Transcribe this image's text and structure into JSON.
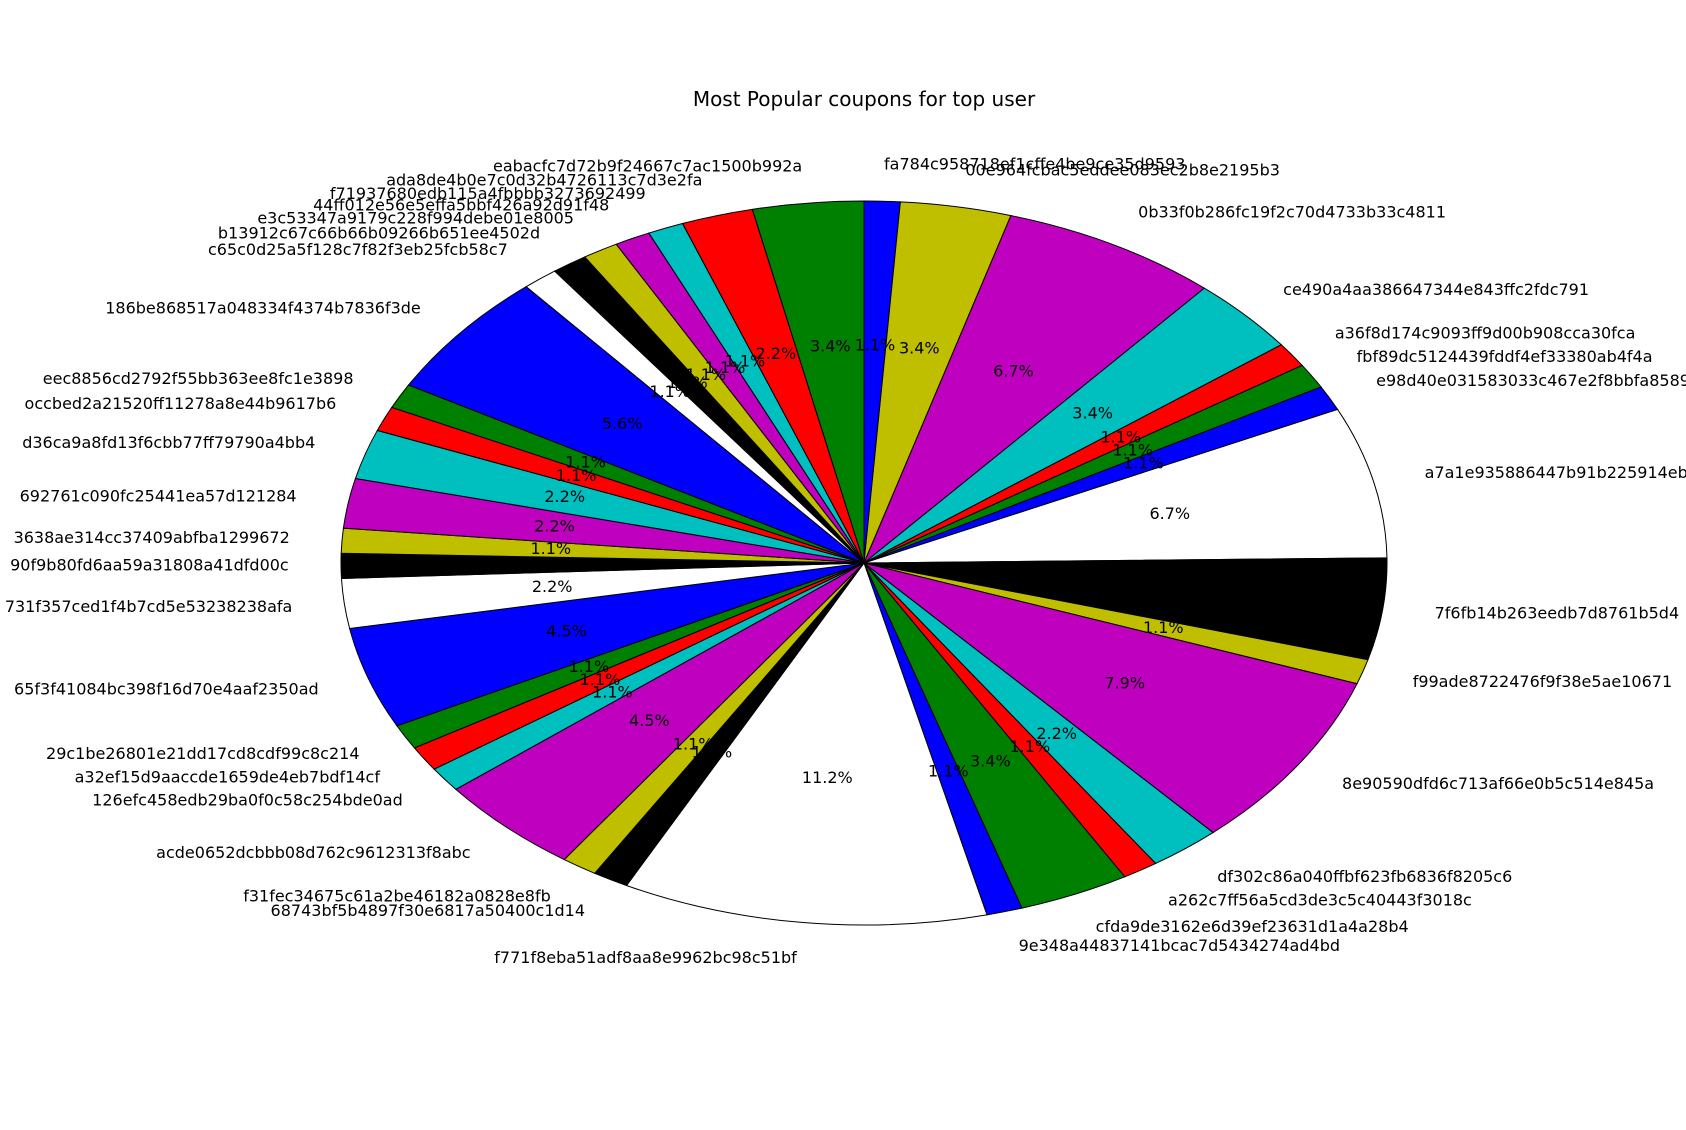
{
  "chart_data": {
    "type": "pie",
    "title": "Most Popular coupons for top user",
    "start_angle_deg": 90,
    "direction": "clockwise",
    "colors": [
      "#0000ff",
      "#bfbf00",
      "#bf00bf",
      "#00bfbf",
      "#ff0000",
      "#008000",
      "#0000ff",
      "#ffffff",
      "#000000",
      "#bfbf00",
      "#bf00bf",
      "#00bfbf",
      "#ff0000",
      "#008000",
      "#0000ff",
      "#ffffff",
      "#000000",
      "#bfbf00",
      "#bf00bf",
      "#00bfbf",
      "#ff0000",
      "#008000",
      "#0000ff",
      "#ffffff",
      "#000000",
      "#bfbf00",
      "#bf00bf",
      "#00bfbf",
      "#ff0000",
      "#008000",
      "#0000ff",
      "#ffffff",
      "#000000",
      "#bfbf00",
      "#bf00bf",
      "#00bfbf",
      "#ff0000",
      "#008000",
      "#0000ff",
      "#ffffff",
      "#000000",
      "#bfbf00",
      "#bf00bf",
      "#00bfbf",
      "#ff0000",
      "#008000"
    ],
    "slices": [
      {
        "label": "fa784c958718ef1cffe4be9ce35d9593",
        "value": 1.1,
        "pct_label": "1.1%"
      },
      {
        "label": "00e964fcbac5eddee083ec2b8e2195b3",
        "value": 3.4,
        "pct_label": "3.4%"
      },
      {
        "label": "0b33f0b286fc19f2c70d4733b33c4811",
        "value": 6.7,
        "pct_label": "6.7%"
      },
      {
        "label": "ce490a4aa386647344e843ffc2fdc791",
        "value": 3.4,
        "pct_label": "3.4%"
      },
      {
        "label": "a36f8d174c9093ff9d00b908cca30fca",
        "value": 1.1,
        "pct_label": "1.1%"
      },
      {
        "label": "fbf89dc5124439fddf4ef33380ab4f4a",
        "value": 1.1,
        "pct_label": "1.1%"
      },
      {
        "label": "e98d40e031583033c467e2f8bbfa8589",
        "value": 1.1,
        "pct_label": "1.1%"
      },
      {
        "label": "a7a1e935886447b91b225914eb",
        "value": 6.7,
        "pct_label": "6.7%"
      },
      {
        "label": "7f6fb14b263eedb7d8761b5d4",
        "value": 4.5,
        "pct_label": ""
      },
      {
        "label": "f99ade8722476f9f38e5ae10671",
        "value": 1.1,
        "pct_label": "1.1%"
      },
      {
        "label": "8e90590dfd6c713af66e0b5c514e845a",
        "value": 7.9,
        "pct_label": "7.9%"
      },
      {
        "label": "df302c86a040ffbf623fb6836f8205c6",
        "value": 2.2,
        "pct_label": "2.2%"
      },
      {
        "label": "a262c7ff56a5cd3de3c5c40443f3018c",
        "value": 1.1,
        "pct_label": "1.1%"
      },
      {
        "label": "cfda9de3162e6d39ef23631d1a4a28b4",
        "value": 3.4,
        "pct_label": "3.4%"
      },
      {
        "label": "9e348a44837141bcac7d5434274ad4bd",
        "value": 1.1,
        "pct_label": "1.1%"
      },
      {
        "label": "f771f8eba51adf8aa8e9962bc98c51bf",
        "value": 11.2,
        "pct_label": "11.2%"
      },
      {
        "label": "68743bf5b4897f30e6817a50400c1d14",
        "value": 1.1,
        "pct_label": "1.1%"
      },
      {
        "label": "f31fec34675c61a2be46182a0828e8fb",
        "value": 1.1,
        "pct_label": "1.1%"
      },
      {
        "label": "acde0652dcbbb08d762c9612313f8abc",
        "value": 4.5,
        "pct_label": "4.5%"
      },
      {
        "label": "126efc458edb29ba0f0c58c254bde0ad",
        "value": 1.1,
        "pct_label": "1.1%"
      },
      {
        "label": "a32ef15d9aaccde1659de4eb7bdf14cf",
        "value": 1.1,
        "pct_label": "1.1%"
      },
      {
        "label": "29c1be26801e21dd17cd8cdf99c8c214",
        "value": 1.1,
        "pct_label": "1.1%"
      },
      {
        "label": "65f3f41084bc398f16d70e4aaf2350ad",
        "value": 4.5,
        "pct_label": "4.5%"
      },
      {
        "label": "731f357ced1f4b7cd5e53238238afa",
        "value": 2.2,
        "pct_label": "2.2%"
      },
      {
        "label": "90f9b80fd6aa59a31808a41dfd00c",
        "value": 1.1,
        "pct_label": ""
      },
      {
        "label": "3638ae314cc37409abfba1299672",
        "value": 1.1,
        "pct_label": "1.1%"
      },
      {
        "label": "692761c090fc25441ea57d121284",
        "value": 2.2,
        "pct_label": "2.2%"
      },
      {
        "label": "d36ca9a8fd13f6cbb77ff79790a4bb4",
        "value": 2.2,
        "pct_label": "2.2%"
      },
      {
        "label": "occbed2a21520ff11278a8e44b9617b6",
        "value": 1.1,
        "pct_label": "1.1%"
      },
      {
        "label": "eec8856cd2792f55bb363ee8fc1e3898",
        "value": 1.1,
        "pct_label": "1.1%"
      },
      {
        "label": "186be868517a048334f4374b7836f3de",
        "value": 5.6,
        "pct_label": "5.6%"
      },
      {
        "label": "c65c0d25a5f128c7f82f3eb25fcb58c7",
        "value": 1.1,
        "pct_label": "1.1%"
      },
      {
        "label": "b13912c67c66b66b09266b651ee4502d",
        "value": 1.1,
        "pct_label": "1.1%"
      },
      {
        "label": "e3c53347a9179c228f994debe01e8005",
        "value": 1.1,
        "pct_label": "1.1%"
      },
      {
        "label": "44ff012e56e5effa5bbf426a92d91f48",
        "value": 1.1,
        "pct_label": "1.1%"
      },
      {
        "label": "f71937680edb115a4fbbbb3273692499",
        "value": 1.1,
        "pct_label": "1.1%"
      },
      {
        "label": "ada8de4b0e7c0d32b4726113c7d3e2fa",
        "value": 2.2,
        "pct_label": "2.2%"
      },
      {
        "label": "eabacfc7d72b9f24667c7ac1500b992a",
        "value": 3.4,
        "pct_label": "3.4%"
      }
    ]
  }
}
